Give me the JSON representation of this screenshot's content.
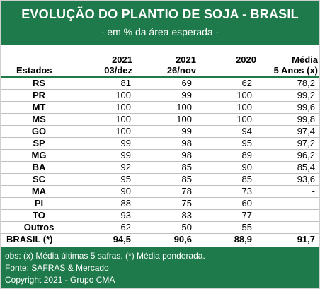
{
  "header": {
    "title": "EVOLUÇÃO DO PLANTIO DE SOJA - BRASIL",
    "subtitle": "- em % da área esperada -"
  },
  "table": {
    "columns": [
      {
        "line1": "",
        "line2": "Estados"
      },
      {
        "line1": "2021",
        "line2": "03/dez"
      },
      {
        "line1": "2021",
        "line2": "26/nov"
      },
      {
        "line1": "2020",
        "line2": ""
      },
      {
        "line1": "Média",
        "line2": "5 Anos (x)"
      }
    ],
    "rows": [
      {
        "state": "RS",
        "v": [
          "81",
          "69",
          "62",
          "78,2"
        ]
      },
      {
        "state": "PR",
        "v": [
          "100",
          "99",
          "100",
          "99,2"
        ]
      },
      {
        "state": "MT",
        "v": [
          "100",
          "100",
          "100",
          "99,6"
        ]
      },
      {
        "state": "MS",
        "v": [
          "100",
          "100",
          "100",
          "99,8"
        ]
      },
      {
        "state": "GO",
        "v": [
          "100",
          "99",
          "94",
          "97,4"
        ]
      },
      {
        "state": "SP",
        "v": [
          "99",
          "98",
          "95",
          "97,2"
        ]
      },
      {
        "state": "MG",
        "v": [
          "99",
          "98",
          "89",
          "96,2"
        ]
      },
      {
        "state": "BA",
        "v": [
          "92",
          "85",
          "90",
          "85,4"
        ]
      },
      {
        "state": "SC",
        "v": [
          "95",
          "85",
          "85",
          "93,6"
        ]
      },
      {
        "state": "MA",
        "v": [
          "90",
          "78",
          "73",
          "-"
        ]
      },
      {
        "state": "PI",
        "v": [
          "88",
          "75",
          "60",
          "-"
        ]
      },
      {
        "state": "TO",
        "v": [
          "93",
          "83",
          "77",
          "-"
        ]
      },
      {
        "state": "Outros",
        "v": [
          "62",
          "50",
          "55",
          "-"
        ]
      }
    ],
    "total": {
      "state": "BRASIL (*)",
      "v": [
        "94,5",
        "90,6",
        "88,9",
        "91,7"
      ]
    }
  },
  "footer": {
    "lines": [
      "obs: (x) Média últimas 5 safras. (*) Média ponderada.",
      "Fonte: SAFRAS & Mercado",
      "Copyright 2021 - Grupo CMA"
    ]
  },
  "colors": {
    "brand_green": "#1e7a4a",
    "row_divider": "#bfbfbf"
  }
}
